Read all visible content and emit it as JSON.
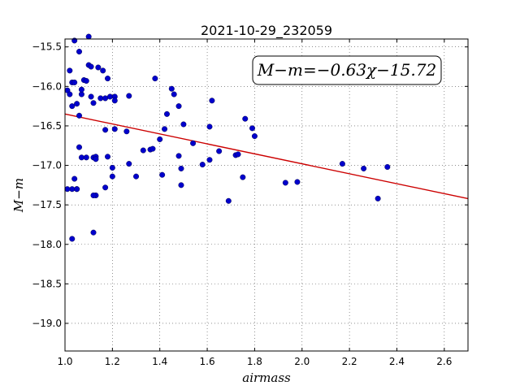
{
  "chart_data": {
    "type": "scatter",
    "title": "2021-10-29_232059",
    "xlabel": "airmass",
    "ylabel": "M−m",
    "xlim": [
      1.0,
      2.7
    ],
    "ylim": [
      -19.35,
      -15.4
    ],
    "y_inverted": false,
    "grid": true,
    "xticks": [
      1.0,
      1.2,
      1.4,
      1.6,
      1.8,
      2.0,
      2.2,
      2.4,
      2.6
    ],
    "xtick_labels": [
      "1.0",
      "1.2",
      "1.4",
      "1.6",
      "1.8",
      "2.0",
      "2.2",
      "2.4",
      "2.6"
    ],
    "yticks": [
      -15.5,
      -16.0,
      -16.5,
      -17.0,
      -17.5,
      -18.0,
      -18.5,
      -19.0
    ],
    "ytick_labels": [
      "−15.5",
      "−16.0",
      "−16.5",
      "−17.0",
      "−17.5",
      "−18.0",
      "−18.5",
      "−19.0"
    ],
    "annotation": "M−m=−0.63χ−15.72",
    "colors": {
      "points": "#0000cc",
      "fit": "#cc0000"
    },
    "fit_line": {
      "slope": -0.63,
      "intercept": -15.72
    },
    "series": [
      {
        "x": [
          1.01,
          1.02,
          1.02,
          1.03,
          1.03,
          1.03,
          1.04,
          1.04,
          1.04,
          1.05,
          1.05,
          1.06,
          1.06,
          1.06,
          1.07,
          1.07,
          1.07,
          1.08,
          1.09,
          1.09,
          1.1,
          1.1,
          1.11,
          1.11,
          1.12,
          1.12,
          1.13,
          1.13,
          1.13,
          1.14,
          1.15,
          1.16,
          1.17,
          1.17,
          1.18,
          1.18,
          1.19,
          1.2,
          1.2,
          1.21,
          1.21,
          1.21,
          1.26,
          1.27,
          1.27,
          1.3,
          1.33,
          1.36,
          1.37,
          1.38,
          1.4,
          1.41,
          1.42,
          1.43,
          1.45,
          1.46,
          1.48,
          1.48,
          1.49,
          1.49,
          1.5,
          1.54,
          1.58,
          1.61,
          1.61,
          1.62,
          1.65,
          1.69,
          1.72,
          1.73,
          1.75,
          1.76,
          1.79,
          1.8,
          1.93,
          1.98,
          2.17,
          2.26,
          2.32,
          2.36,
          1.01,
          1.03,
          1.05,
          1.12,
          1.17,
          1.12
        ],
        "y": [
          -16.05,
          -16.1,
          -15.8,
          -16.25,
          -15.95,
          -17.3,
          -15.42,
          -15.95,
          -17.17,
          -16.22,
          -17.3,
          -15.56,
          -16.37,
          -16.77,
          -16.1,
          -16.04,
          -16.9,
          -15.92,
          -16.9,
          -15.93,
          -15.37,
          -15.73,
          -15.75,
          -16.13,
          -16.21,
          -16.9,
          -16.89,
          -16.92,
          -17.38,
          -15.76,
          -16.15,
          -15.8,
          -16.55,
          -16.15,
          -15.9,
          -16.89,
          -16.13,
          -17.03,
          -17.14,
          -16.13,
          -16.18,
          -16.54,
          -16.57,
          -16.12,
          -16.98,
          -17.14,
          -16.81,
          -16.8,
          -16.79,
          -15.9,
          -16.67,
          -17.12,
          -16.54,
          -16.35,
          -16.03,
          -16.1,
          -16.25,
          -16.88,
          -17.04,
          -17.25,
          -16.48,
          -16.72,
          -16.99,
          -16.51,
          -16.93,
          -16.18,
          -16.82,
          -17.45,
          -16.87,
          -16.86,
          -17.15,
          -16.41,
          -16.53,
          -16.63,
          -17.22,
          -17.21,
          -16.98,
          -17.04,
          -17.42,
          -17.02,
          -17.3,
          -17.93,
          -17.3,
          -17.85,
          -17.28,
          -17.38
        ]
      }
    ]
  }
}
